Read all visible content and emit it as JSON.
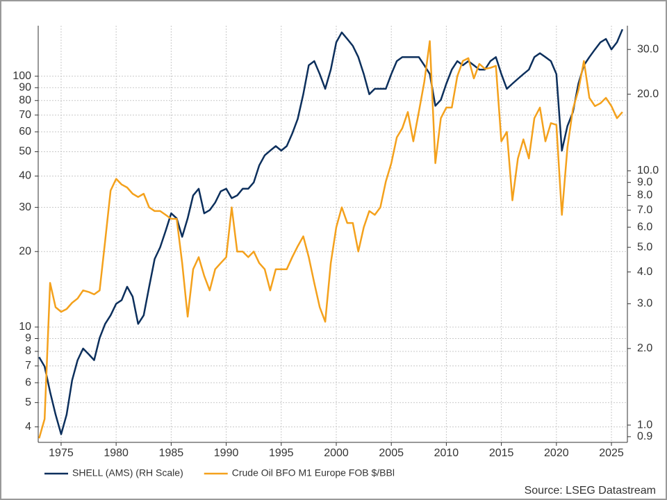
{
  "chart_data": {
    "type": "line",
    "x": [
      1973,
      1973.5,
      1974,
      1974.5,
      1975,
      1975.5,
      1976,
      1976.5,
      1977,
      1977.5,
      1978,
      1978.5,
      1979,
      1979.5,
      1980,
      1980.5,
      1981,
      1981.5,
      1982,
      1982.5,
      1983,
      1983.5,
      1984,
      1984.5,
      1985,
      1985.5,
      1986,
      1986.5,
      1987,
      1987.5,
      1988,
      1988.5,
      1989,
      1989.5,
      1990,
      1990.5,
      1991,
      1991.5,
      1992,
      1992.5,
      1993,
      1993.5,
      1994,
      1994.5,
      1995,
      1995.5,
      1996,
      1996.5,
      1997,
      1997.5,
      1998,
      1998.5,
      1999,
      1999.5,
      2000,
      2000.5,
      2001,
      2001.5,
      2002,
      2002.5,
      2003,
      2003.5,
      2004,
      2004.5,
      2005,
      2005.5,
      2006,
      2006.5,
      2007,
      2007.5,
      2008,
      2008.5,
      2009,
      2009.5,
      2010,
      2010.5,
      2011,
      2011.5,
      2012,
      2012.5,
      2013,
      2013.5,
      2014,
      2014.5,
      2015,
      2015.5,
      2016,
      2016.5,
      2017,
      2017.5,
      2018,
      2018.5,
      2019,
      2019.5,
      2020,
      2020.5,
      2021,
      2021.5,
      2022,
      2022.5,
      2023,
      2023.5,
      2024,
      2024.5,
      2025,
      2025.5,
      2026
    ],
    "series": [
      {
        "name": "SHELL (AMS) (RH Scale)",
        "color": "#0c2f5c",
        "axis": "y2",
        "values": [
          1.85,
          1.7,
          1.35,
          1.1,
          0.92,
          1.1,
          1.5,
          1.8,
          2.0,
          1.9,
          1.8,
          2.2,
          2.5,
          2.7,
          3.0,
          3.1,
          3.5,
          3.2,
          2.5,
          2.7,
          3.5,
          4.5,
          5.0,
          5.8,
          6.8,
          6.5,
          5.5,
          6.5,
          8.0,
          8.5,
          6.8,
          7.0,
          7.5,
          8.3,
          8.5,
          7.8,
          8.0,
          8.5,
          8.5,
          9.0,
          10.5,
          11.5,
          12.0,
          12.5,
          12.0,
          12.5,
          14.0,
          16.0,
          20.0,
          26.0,
          27,
          24,
          21,
          25,
          32,
          35,
          33,
          31,
          28,
          24,
          20,
          21,
          21,
          21,
          24,
          27,
          28,
          28,
          28,
          28,
          26,
          24,
          18,
          19,
          22,
          25,
          27,
          26,
          27,
          26,
          25,
          25,
          27,
          28,
          24,
          21,
          22,
          23,
          24,
          25,
          28,
          29,
          28,
          27,
          24,
          12,
          15,
          17,
          22,
          26,
          28,
          30,
          32,
          33,
          30,
          32,
          36
        ]
      },
      {
        "name": "Crude Oil BFO M1 Europe FOB $/BBl",
        "color": "#f4a11c",
        "values": [
          3.6,
          4.3,
          15,
          12,
          11.5,
          11.8,
          12.5,
          13,
          14,
          13.8,
          13.5,
          14,
          22,
          35,
          39,
          37,
          36,
          34,
          33,
          34,
          30,
          29,
          29,
          28,
          27,
          27,
          18,
          11,
          17,
          19,
          16,
          14,
          17,
          18,
          19,
          30,
          20,
          20,
          19,
          20,
          18,
          17,
          14,
          17,
          17,
          17,
          19,
          21,
          23,
          19,
          15,
          12,
          10.5,
          18,
          25,
          30,
          26,
          26,
          20,
          25,
          29,
          28,
          30,
          38,
          45,
          57,
          62,
          72,
          55,
          72,
          95,
          138,
          45,
          68,
          75,
          75,
          100,
          115,
          118,
          98,
          112,
          107,
          108,
          110,
          55,
          60,
          32,
          47,
          56,
          47,
          68,
          75,
          55,
          65,
          64,
          28,
          52,
          74,
          88,
          115,
          82,
          76,
          78,
          82,
          76,
          68,
          72
        ]
      }
    ],
    "xlim": [
      1972.92,
      2026.45
    ],
    "xticks": [
      1975,
      1980,
      1985,
      1990,
      1995,
      2000,
      2005,
      2010,
      2015,
      2020,
      2025
    ],
    "ylim": [
      3.47,
      159
    ],
    "y_log": true,
    "yticks": [
      4,
      5,
      6,
      7,
      8,
      9,
      10,
      20,
      30,
      40,
      50,
      60,
      70,
      80,
      90,
      100
    ],
    "y2lim": [
      0.855,
      37.2
    ],
    "y2_log": true,
    "y2ticks": [
      {
        "value": 30,
        "label": "30.0"
      },
      {
        "value": 20,
        "label": "20.0"
      },
      {
        "value": 10,
        "label": "10.0"
      },
      {
        "value": 9,
        "label": "9.0"
      },
      {
        "value": 8,
        "label": "8.0"
      },
      {
        "value": 7,
        "label": "7.0"
      },
      {
        "value": 6,
        "label": "6.0"
      },
      {
        "value": 5,
        "label": "5.0"
      },
      {
        "value": 4,
        "label": "4.0"
      },
      {
        "value": 3,
        "label": "3.0"
      },
      {
        "value": 2,
        "label": "2.0"
      },
      {
        "value": 1,
        "label": "1.0"
      },
      {
        "value": 0.9,
        "label": "0.9"
      }
    ],
    "grid": true,
    "source": "Source: LSEG Datastream"
  }
}
